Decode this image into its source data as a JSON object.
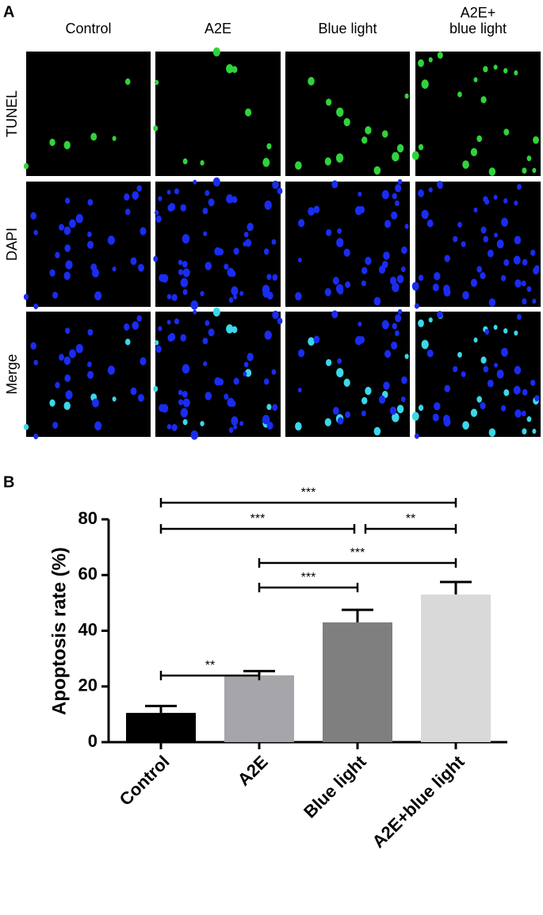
{
  "panel_a": {
    "label": "A",
    "columns": [
      [
        "Control"
      ],
      [
        "A2E"
      ],
      [
        "Blue light"
      ],
      [
        "A2E+",
        "blue light"
      ]
    ],
    "rows": [
      "TUNEL",
      "DAPI",
      "Merge"
    ]
  },
  "chart_data": {
    "type": "bar",
    "panel_label": "B",
    "y_label": "Apoptosis rate (%)",
    "categories": [
      "Control",
      "A2E",
      "Blue light",
      "A2E+blue light"
    ],
    "values": [
      10.5,
      24,
      43,
      53
    ],
    "errors": [
      2.5,
      1.5,
      4.5,
      4.5
    ],
    "colors": [
      "#000000",
      "#a6a5aa",
      "#7f7f7f",
      "#d9d9d9"
    ],
    "ylim": [
      0,
      80
    ],
    "yticks": [
      0,
      20,
      40,
      60,
      80
    ],
    "annotations": [
      {
        "label": "**",
        "between": [
          "Control",
          "A2E"
        ]
      },
      {
        "label": "***",
        "between": [
          "A2E",
          "Blue light"
        ]
      },
      {
        "label": "***",
        "between": [
          "A2E",
          "A2E+blue light"
        ]
      },
      {
        "label": "***",
        "between": [
          "Control",
          "Blue light"
        ]
      },
      {
        "label": "**",
        "between": [
          "Blue light",
          "A2E+blue light"
        ]
      },
      {
        "label": "***",
        "between": [
          "Control",
          "A2E+blue light"
        ]
      }
    ]
  }
}
